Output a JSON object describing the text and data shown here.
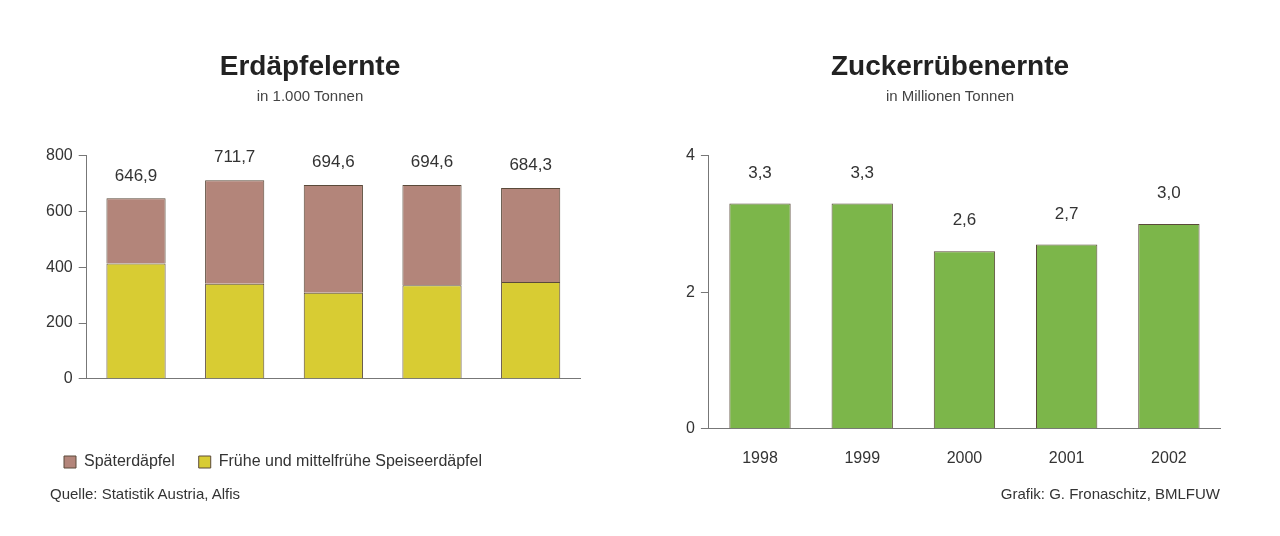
{
  "chart_data": [
    {
      "type": "bar",
      "title": "Erdäpfelernte",
      "subtitle": "in 1.000 Tonnen",
      "categories": [
        null,
        null,
        null,
        null,
        null
      ],
      "stacked": true,
      "series": [
        {
          "name": "Frühe und mittelfrühe Speiseerdäpfel",
          "color": "#d8cc33",
          "values": [
            413,
            341,
            308,
            335,
            347
          ]
        },
        {
          "name": "Späterdäpfel",
          "color": "#b3857a",
          "values": [
            233.9,
            370.7,
            386.6,
            359.6,
            337.3
          ]
        }
      ],
      "totals": [
        "646,9",
        "711,7",
        "694,6",
        "694,6",
        "684,3"
      ],
      "ylim": [
        0,
        800
      ],
      "yticks": [
        0,
        200,
        400,
        600,
        800
      ],
      "grid": false,
      "legend": "bottom",
      "annotations": [
        "Quelle: Statistik Austria, Alfis"
      ]
    },
    {
      "type": "bar",
      "title": "Zuckerrübenernte",
      "subtitle": "in Millionen Tonnen",
      "categories": [
        "1998",
        "1999",
        "2000",
        "2001",
        "2002"
      ],
      "values": [
        3.3,
        3.3,
        2.6,
        2.7,
        3.0
      ],
      "value_labels": [
        "3,3",
        "3,3",
        "2,6",
        "2,7",
        "3,0"
      ],
      "color": "#7cb64a",
      "ylim": [
        0,
        4
      ],
      "yticks": [
        0,
        2,
        4
      ],
      "grid": false,
      "annotations": [
        "Grafik: G. Fronaschitz, BMLFUW"
      ]
    }
  ]
}
